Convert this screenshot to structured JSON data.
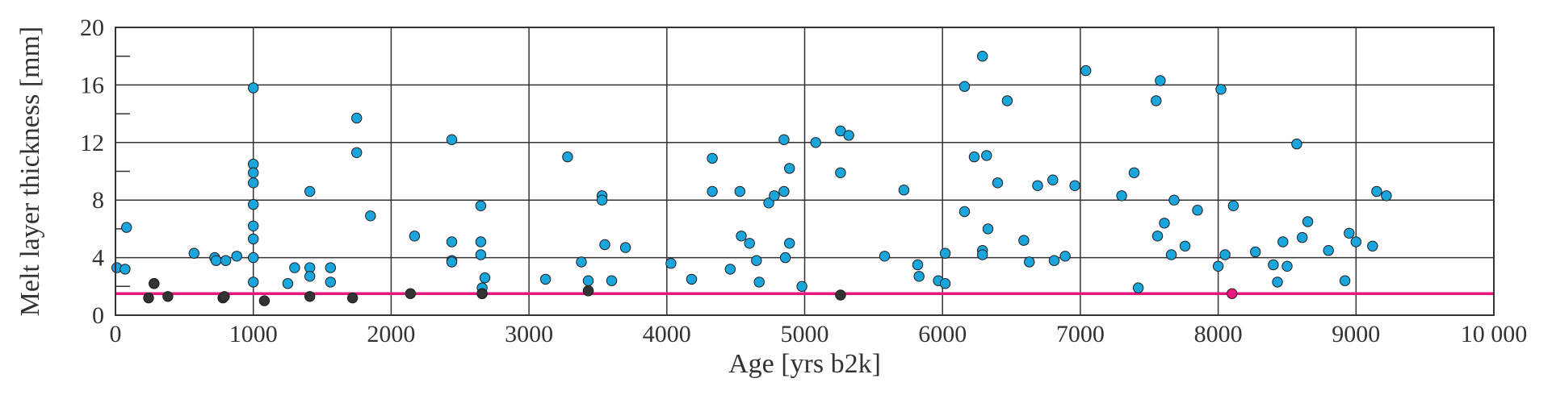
{
  "chart_data": {
    "type": "scatter",
    "title": "",
    "xlabel": "Age [yrs b2k]",
    "ylabel": "Melt layer thickness [mm]",
    "xlim": [
      0,
      10000
    ],
    "ylim": [
      0,
      20
    ],
    "x_ticks": [
      0,
      1000,
      2000,
      3000,
      4000,
      5000,
      6000,
      7000,
      8000,
      9000,
      10000
    ],
    "x_tick_labels": [
      "0",
      "1000",
      "2000",
      "3000",
      "4000",
      "5000",
      "6000",
      "7000",
      "8000",
      "9000",
      "10 000"
    ],
    "y_ticks": [
      0,
      4,
      8,
      12,
      16,
      20
    ],
    "y_tick_labels": [
      "0",
      "4",
      "8",
      "12",
      "16",
      "20"
    ],
    "grid": true,
    "threshold_line": {
      "y": 1.5,
      "color": "#e8177f"
    },
    "colors": {
      "blue": "#1aa6dd",
      "dark": "#333333",
      "pink": "#e8177f"
    },
    "series": [
      {
        "color": "#1aa6dd",
        "points": [
          [
            10,
            3.3
          ],
          [
            70,
            3.2
          ],
          [
            80,
            6.1
          ],
          [
            280,
            2.2
          ],
          [
            570,
            4.3
          ],
          [
            720,
            4.0
          ],
          [
            730,
            3.8
          ],
          [
            800,
            3.8
          ],
          [
            880,
            4.1
          ],
          [
            1000,
            15.8
          ],
          [
            1000,
            10.5
          ],
          [
            1000,
            9.9
          ],
          [
            1000,
            9.2
          ],
          [
            1000,
            7.7
          ],
          [
            1000,
            6.2
          ],
          [
            1000,
            5.3
          ],
          [
            1000,
            4.0
          ],
          [
            1000,
            2.3
          ],
          [
            1250,
            2.2
          ],
          [
            1300,
            3.3
          ],
          [
            1410,
            8.6
          ],
          [
            1410,
            3.3
          ],
          [
            1410,
            2.7
          ],
          [
            1560,
            3.3
          ],
          [
            1560,
            2.3
          ],
          [
            1750,
            13.7
          ],
          [
            1750,
            11.3
          ],
          [
            1850,
            6.9
          ],
          [
            2170,
            5.5
          ],
          [
            2440,
            12.2
          ],
          [
            2440,
            5.1
          ],
          [
            2440,
            3.8
          ],
          [
            2440,
            3.7
          ],
          [
            2650,
            7.6
          ],
          [
            2650,
            5.1
          ],
          [
            2650,
            4.2
          ],
          [
            2660,
            1.9
          ],
          [
            2660,
            1.5
          ],
          [
            2680,
            2.6
          ],
          [
            3120,
            2.5
          ],
          [
            3280,
            11.0
          ],
          [
            3380,
            3.7
          ],
          [
            3430,
            2.4
          ],
          [
            3430,
            1.7
          ],
          [
            3530,
            8.3
          ],
          [
            3530,
            8.0
          ],
          [
            3550,
            4.9
          ],
          [
            3600,
            2.4
          ],
          [
            3700,
            4.7
          ],
          [
            4030,
            3.6
          ],
          [
            4180,
            2.5
          ],
          [
            4330,
            10.9
          ],
          [
            4330,
            8.6
          ],
          [
            4460,
            3.2
          ],
          [
            4530,
            8.6
          ],
          [
            4540,
            5.5
          ],
          [
            4600,
            5.0
          ],
          [
            4650,
            3.8
          ],
          [
            4670,
            2.3
          ],
          [
            4740,
            7.8
          ],
          [
            4780,
            8.3
          ],
          [
            4850,
            12.2
          ],
          [
            4850,
            8.6
          ],
          [
            4860,
            4.0
          ],
          [
            4890,
            10.2
          ],
          [
            4890,
            5.0
          ],
          [
            4980,
            2.0
          ],
          [
            5080,
            12.0
          ],
          [
            5260,
            12.8
          ],
          [
            5260,
            9.9
          ],
          [
            5320,
            12.5
          ],
          [
            5580,
            4.1
          ],
          [
            5720,
            8.7
          ],
          [
            5820,
            3.5
          ],
          [
            5830,
            2.7
          ],
          [
            5970,
            2.4
          ],
          [
            6020,
            4.3
          ],
          [
            6020,
            2.2
          ],
          [
            6160,
            15.9
          ],
          [
            6160,
            7.2
          ],
          [
            6230,
            11.0
          ],
          [
            6290,
            18.0
          ],
          [
            6290,
            4.5
          ],
          [
            6290,
            4.2
          ],
          [
            6320,
            11.1
          ],
          [
            6330,
            6.0
          ],
          [
            6400,
            9.2
          ],
          [
            6470,
            14.9
          ],
          [
            6590,
            5.2
          ],
          [
            6630,
            3.7
          ],
          [
            6690,
            9.0
          ],
          [
            6800,
            9.4
          ],
          [
            6810,
            3.8
          ],
          [
            6890,
            4.1
          ],
          [
            6960,
            9.0
          ],
          [
            7040,
            17.0
          ],
          [
            7300,
            8.3
          ],
          [
            7390,
            9.9
          ],
          [
            7420,
            1.9
          ],
          [
            7550,
            14.9
          ],
          [
            7560,
            5.5
          ],
          [
            7580,
            16.3
          ],
          [
            7610,
            6.4
          ],
          [
            7660,
            4.2
          ],
          [
            7680,
            8.0
          ],
          [
            7760,
            4.8
          ],
          [
            7850,
            7.3
          ],
          [
            8000,
            3.4
          ],
          [
            8020,
            15.7
          ],
          [
            8050,
            4.2
          ],
          [
            8110,
            7.6
          ],
          [
            8270,
            4.4
          ],
          [
            8400,
            3.5
          ],
          [
            8430,
            2.3
          ],
          [
            8470,
            5.1
          ],
          [
            8500,
            3.4
          ],
          [
            8570,
            11.9
          ],
          [
            8610,
            5.4
          ],
          [
            8650,
            6.5
          ],
          [
            8800,
            4.5
          ],
          [
            8920,
            2.4
          ],
          [
            8950,
            5.7
          ],
          [
            9000,
            5.1
          ],
          [
            9120,
            4.8
          ],
          [
            9150,
            8.6
          ],
          [
            9220,
            8.3
          ]
        ]
      },
      {
        "color": "#333333",
        "points": [
          [
            240,
            1.2
          ],
          [
            280,
            2.2
          ],
          [
            380,
            1.3
          ],
          [
            780,
            1.2
          ],
          [
            790,
            1.3
          ],
          [
            1080,
            1.0
          ],
          [
            1410,
            1.3
          ],
          [
            1720,
            1.2
          ],
          [
            2140,
            1.5
          ],
          [
            2660,
            1.5
          ],
          [
            3430,
            1.7
          ],
          [
            5260,
            1.4
          ]
        ]
      },
      {
        "color": "#e8177f",
        "points": [
          [
            8100,
            1.5
          ]
        ]
      }
    ]
  }
}
